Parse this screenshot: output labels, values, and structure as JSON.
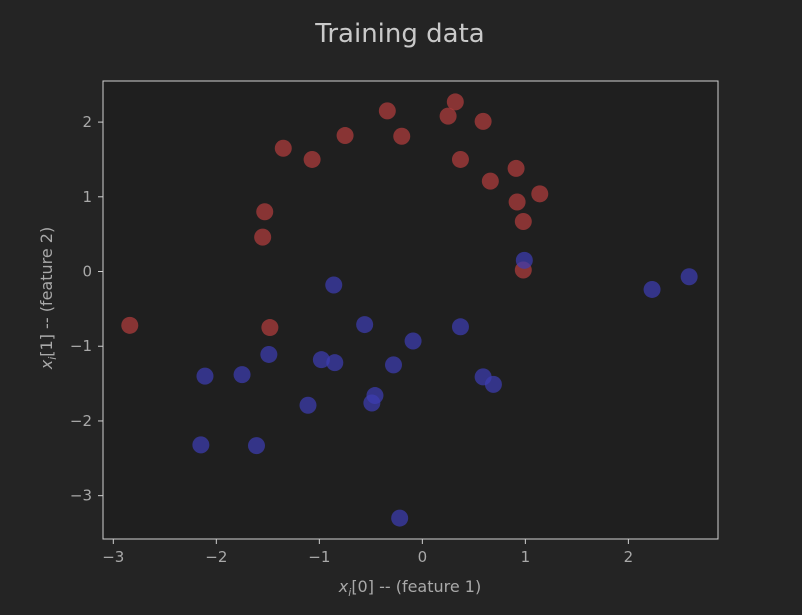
{
  "colors": {
    "figure_background": "#242424",
    "plot_background": "#1f1f1f",
    "axes_frame": "#d0d0d0",
    "text": "#a9a9a9",
    "class_0": "#b23d3d",
    "class_1": "#3d3db2"
  },
  "chart_data": {
    "type": "scatter",
    "title": "Training data",
    "xlabel_var": "x",
    "xlabel_sub": "i",
    "xlabel_rest": "[0] -- (feature 1)",
    "ylabel_var": "x",
    "ylabel_sub": "i",
    "ylabel_rest": "[1] -- (feature 2)",
    "xlim": [
      -3.1,
      2.87
    ],
    "ylim": [
      -3.58,
      2.55
    ],
    "xticks": [
      -3,
      -2,
      -1,
      0,
      1,
      2
    ],
    "yticks": [
      -3,
      -2,
      -1,
      0,
      1,
      2
    ],
    "grid": false,
    "legend": false,
    "series": [
      {
        "color": "#b23d3d",
        "x": [
          -2.84,
          -1.55,
          -1.53,
          -1.35,
          -1.07,
          -0.75,
          -0.34,
          -0.2,
          0.25,
          0.32,
          0.37,
          0.59,
          0.66,
          0.91,
          0.92,
          0.98,
          0.98,
          1.14,
          -1.48
        ],
        "y": [
          -0.72,
          0.46,
          0.8,
          1.65,
          1.5,
          1.82,
          2.15,
          1.81,
          2.08,
          2.27,
          1.5,
          2.01,
          1.21,
          1.38,
          0.93,
          0.67,
          0.02,
          1.04,
          -0.75
        ]
      },
      {
        "color": "#3d3db2",
        "x": [
          -2.15,
          -2.11,
          -1.75,
          -1.61,
          -1.49,
          -1.11,
          -0.98,
          -0.86,
          -0.85,
          -0.56,
          -0.49,
          -0.46,
          -0.28,
          -0.22,
          -0.09,
          0.37,
          0.59,
          0.69,
          0.99,
          2.23,
          2.59
        ],
        "y": [
          -2.32,
          -1.4,
          -1.38,
          -2.33,
          -1.11,
          -1.79,
          -1.18,
          -0.18,
          -1.22,
          -0.71,
          -1.76,
          -1.66,
          -1.25,
          -3.3,
          -0.93,
          -0.74,
          -1.41,
          -1.51,
          0.15,
          -0.24,
          -0.07
        ]
      }
    ]
  }
}
